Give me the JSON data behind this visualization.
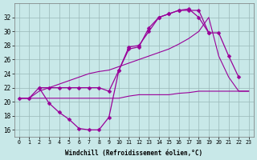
{
  "bg_color": "#c8e8e8",
  "grid_color": "#9ab8b8",
  "line_color": "#990099",
  "xlabel": "Windchill (Refroidissement éolien,°C)",
  "ylim": [
    15,
    34
  ],
  "xlim": [
    -0.5,
    23.5
  ],
  "yticks": [
    16,
    18,
    20,
    22,
    24,
    26,
    28,
    30,
    32
  ],
  "xticks": [
    0,
    1,
    2,
    3,
    4,
    5,
    6,
    7,
    8,
    9,
    10,
    11,
    12,
    13,
    14,
    15,
    16,
    17,
    18,
    19,
    20,
    21,
    22,
    23
  ],
  "curve1_x": [
    0,
    1,
    2,
    3,
    4,
    5,
    6,
    7,
    8,
    9,
    10,
    11,
    12,
    13,
    14,
    15,
    16,
    17,
    18,
    19
  ],
  "curve1_y": [
    20.5,
    20.5,
    22.0,
    19.8,
    18.5,
    17.5,
    16.2,
    16.0,
    16.0,
    17.8,
    24.5,
    27.5,
    27.8,
    30.5,
    32.0,
    32.5,
    33.0,
    33.0,
    33.0,
    29.8
  ],
  "curve2_x": [
    2,
    3,
    4,
    5,
    6,
    7,
    8,
    9,
    10,
    11,
    12,
    13,
    14,
    15,
    16,
    17,
    18,
    19,
    20,
    21,
    22
  ],
  "curve2_y": [
    22.0,
    22.0,
    22.0,
    22.0,
    22.0,
    22.0,
    22.0,
    21.5,
    24.5,
    27.8,
    28.0,
    30.0,
    32.0,
    32.5,
    33.0,
    33.2,
    32.0,
    29.8,
    29.8,
    26.5,
    23.5
  ],
  "curve3_x": [
    0,
    1,
    2,
    3,
    4,
    5,
    6,
    7,
    8,
    9,
    10,
    11,
    12,
    13,
    14,
    15,
    16,
    17,
    18,
    19,
    20,
    21,
    22,
    23
  ],
  "curve3_y": [
    20.5,
    20.5,
    21.5,
    22.0,
    22.5,
    23.0,
    23.5,
    24.0,
    24.3,
    24.5,
    25.0,
    25.5,
    26.0,
    26.5,
    27.0,
    27.5,
    28.2,
    29.0,
    30.0,
    32.0,
    26.5,
    23.5,
    21.5,
    21.5
  ],
  "curve4_x": [
    0,
    1,
    2,
    3,
    4,
    5,
    6,
    7,
    8,
    9,
    10,
    11,
    12,
    13,
    14,
    15,
    16,
    17,
    18,
    19,
    20,
    21,
    22,
    23
  ],
  "curve4_y": [
    20.5,
    20.5,
    20.5,
    20.5,
    20.5,
    20.5,
    20.5,
    20.5,
    20.5,
    20.5,
    20.5,
    20.8,
    21.0,
    21.0,
    21.0,
    21.0,
    21.2,
    21.3,
    21.5,
    21.5,
    21.5,
    21.5,
    21.5,
    21.5
  ]
}
